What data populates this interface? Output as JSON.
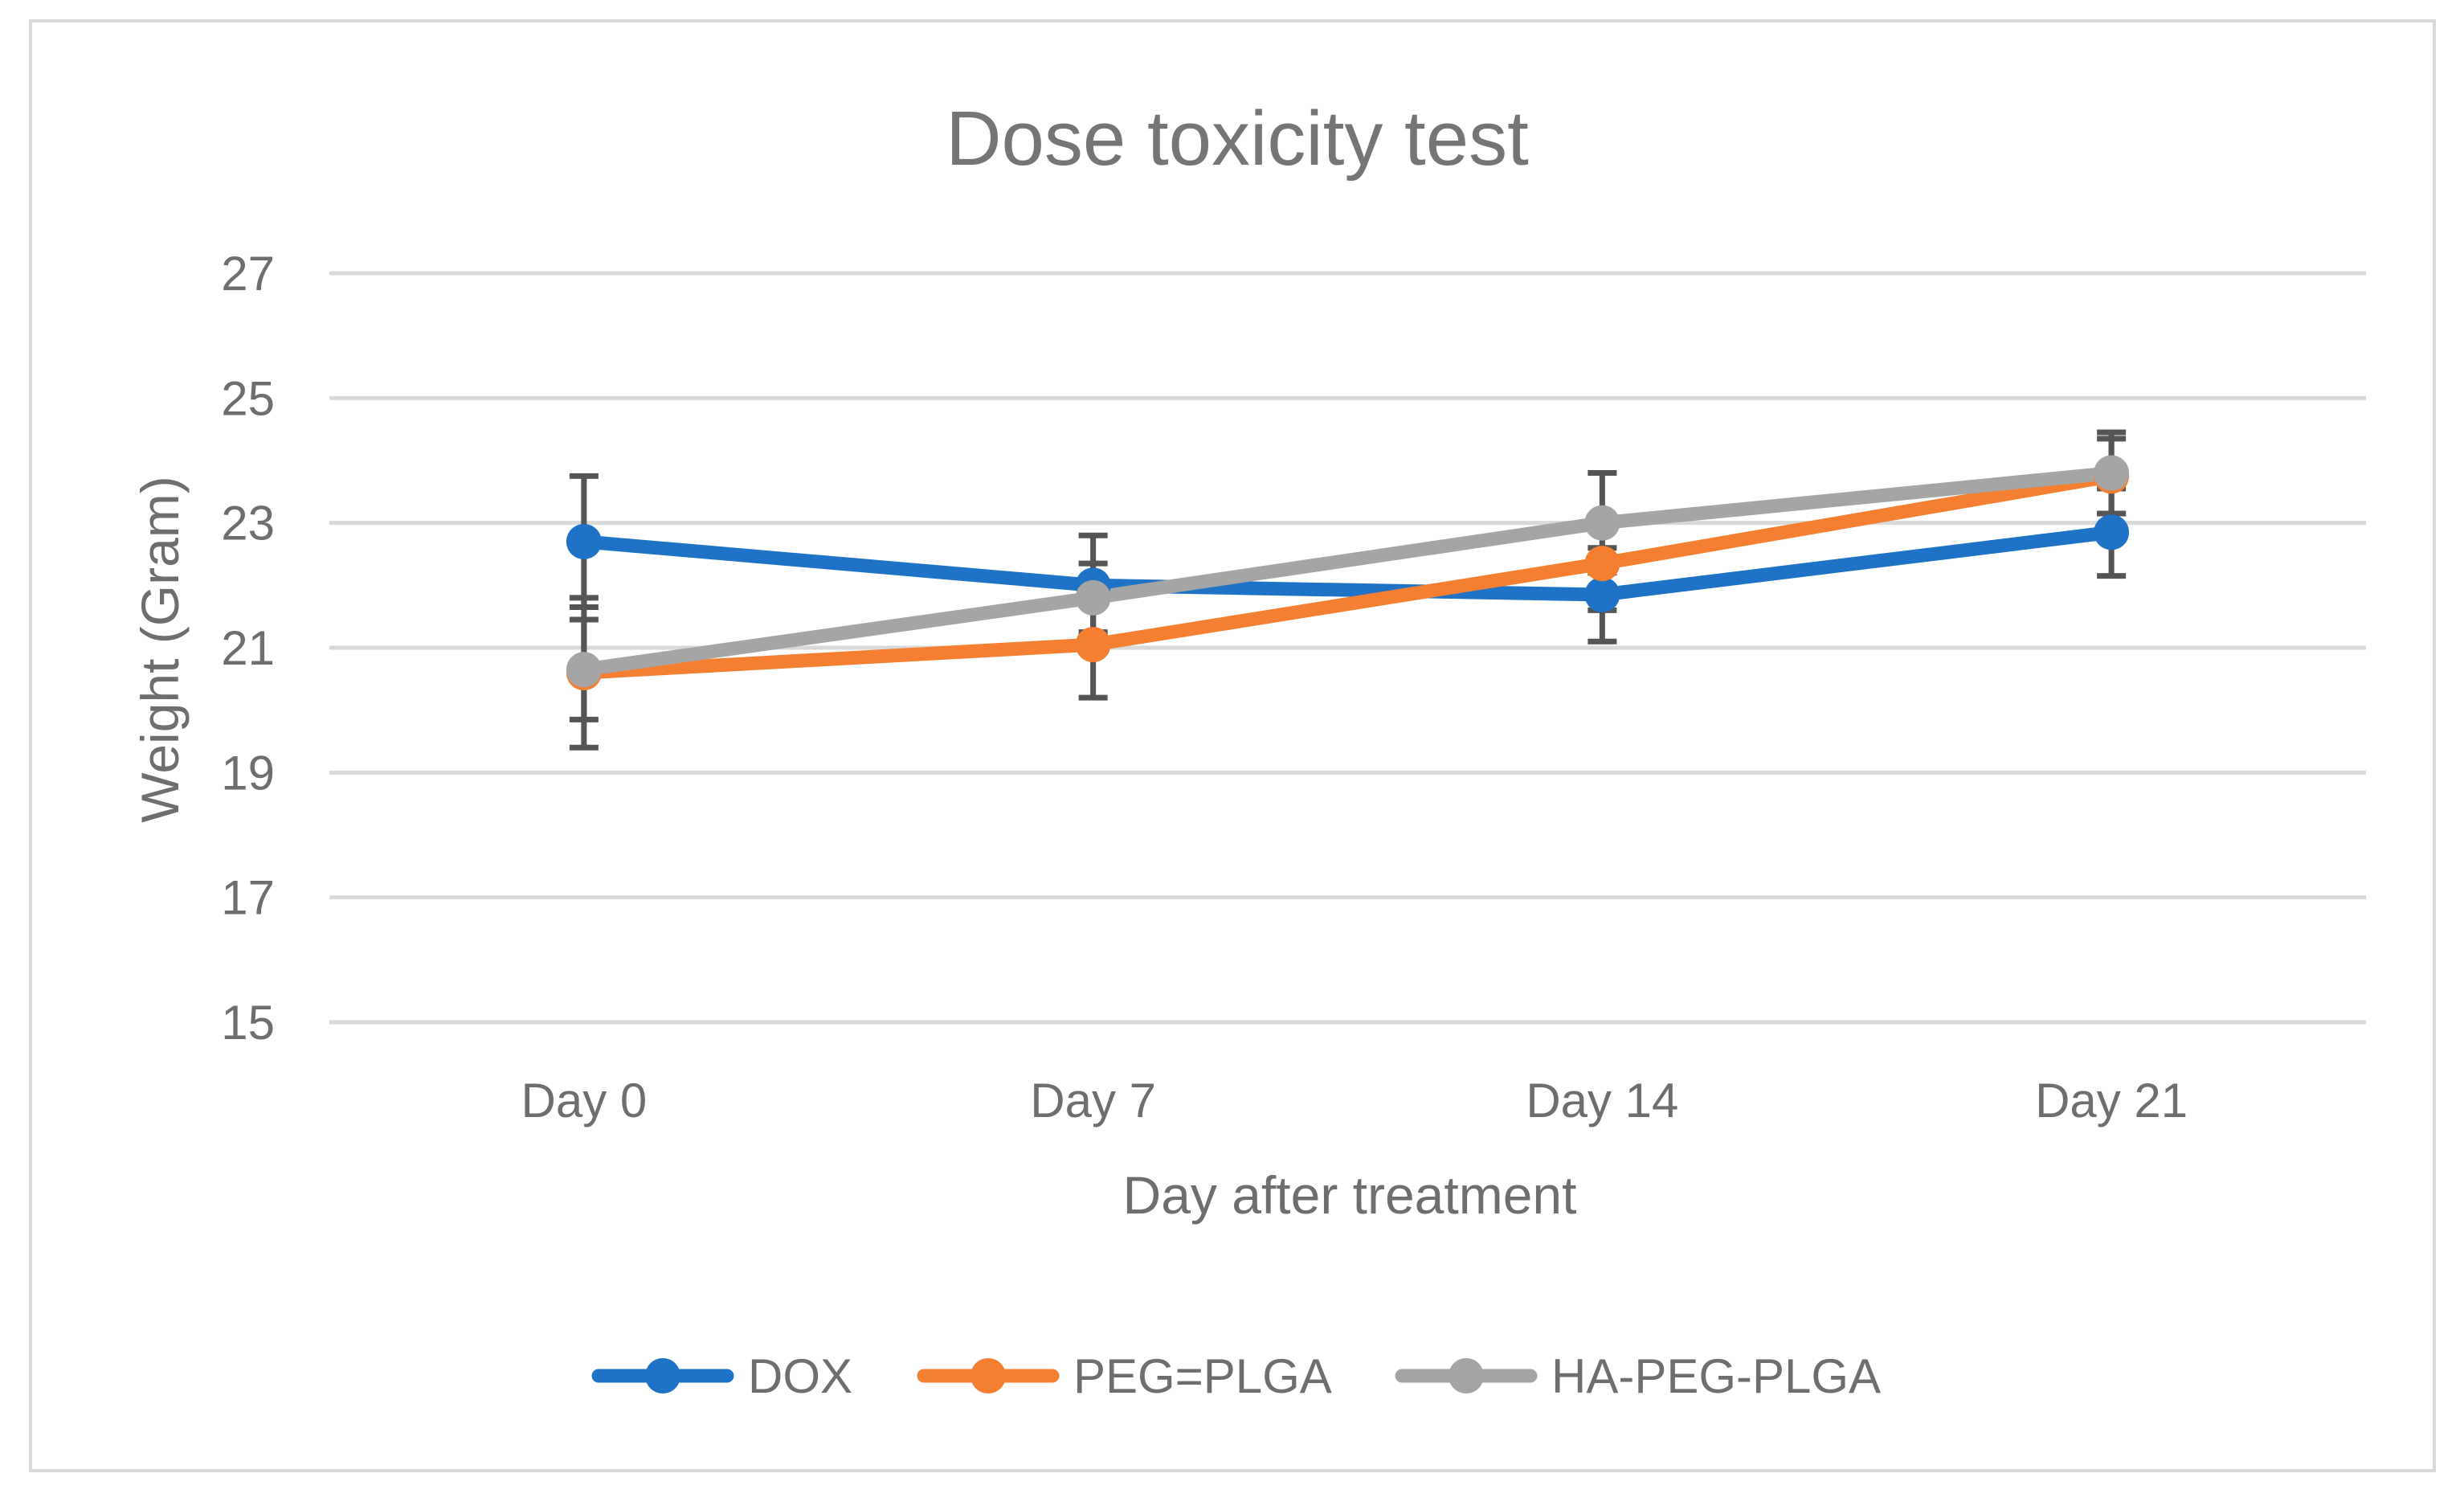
{
  "chart_data": {
    "type": "line",
    "title": "Dose toxicity test",
    "xlabel": "Day after treatment",
    "ylabel": "Weight (Gram)",
    "categories": [
      "Day 0",
      "Day 7",
      "Day 14",
      "Day 21"
    ],
    "ylim": [
      15,
      27
    ],
    "yticks": [
      15,
      17,
      19,
      21,
      23,
      25,
      27
    ],
    "grid": true,
    "legend": "bottom",
    "series": [
      {
        "name": "DOX",
        "color": "#1f73c6",
        "values": [
          22.7,
          22.0,
          21.85,
          22.85
        ],
        "errors": [
          1.05,
          0.8,
          0.75,
          0.7
        ]
      },
      {
        "name": "PEG=PLGA",
        "color": "#f47f30",
        "values": [
          20.6,
          21.05,
          22.35,
          23.75
        ],
        "errors": [
          1.2,
          0.85,
          0.75,
          0.6
        ]
      },
      {
        "name": "HA-PEG-PLGA",
        "color": "#a5a5a5",
        "values": [
          20.65,
          21.8,
          23.0,
          23.8
        ],
        "errors": [
          0.8,
          0.55,
          0.8,
          0.65
        ]
      }
    ]
  }
}
